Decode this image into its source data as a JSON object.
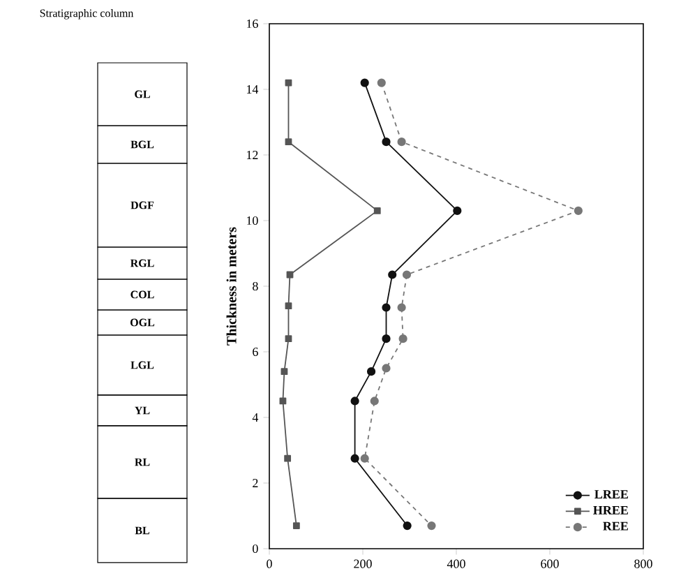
{
  "chart_data": {
    "type": "line",
    "ylabel": "Thickness in meters",
    "annotations": [
      "Stratigraphic column",
      "GL",
      "BGL",
      "DGF",
      "RGL",
      "COL",
      "OGL",
      "LGL",
      "YL",
      "RL",
      "BL"
    ],
    "xlim": [
      0,
      800
    ],
    "xticks": [
      0,
      200,
      400,
      600,
      800
    ],
    "ylim": [
      0,
      16
    ],
    "yticks": [
      0,
      2,
      4,
      6,
      8,
      10,
      12,
      14,
      16
    ],
    "legend": "bottom right",
    "grid": false,
    "series": [
      {
        "name": "LREE",
        "color": "#111111",
        "marker": "circle",
        "line_style": "solid",
        "x": [
          204,
          250,
          402,
          263,
          250,
          250,
          218,
          183,
          183,
          295
        ],
        "values": [
          14.2,
          12.4,
          10.3,
          8.35,
          7.35,
          6.4,
          5.4,
          4.5,
          2.75,
          0.7
        ]
      },
      {
        "name": "HREE",
        "color": "#555555",
        "marker": "square",
        "line_style": "solid",
        "x": [
          41,
          41,
          231,
          44,
          41,
          41,
          32,
          29,
          39,
          58
        ],
        "values": [
          14.2,
          12.4,
          10.3,
          8.35,
          7.4,
          6.4,
          5.4,
          4.5,
          2.75,
          0.7
        ]
      },
      {
        "name": "REE",
        "color": "#777777",
        "marker": "circle",
        "line_style": "dashed",
        "x": [
          240,
          283,
          661,
          294,
          283,
          286,
          250,
          225,
          204,
          347
        ],
        "values": [
          14.2,
          12.4,
          10.3,
          8.35,
          7.35,
          6.4,
          5.5,
          4.5,
          2.75,
          0.7
        ]
      }
    ]
  }
}
